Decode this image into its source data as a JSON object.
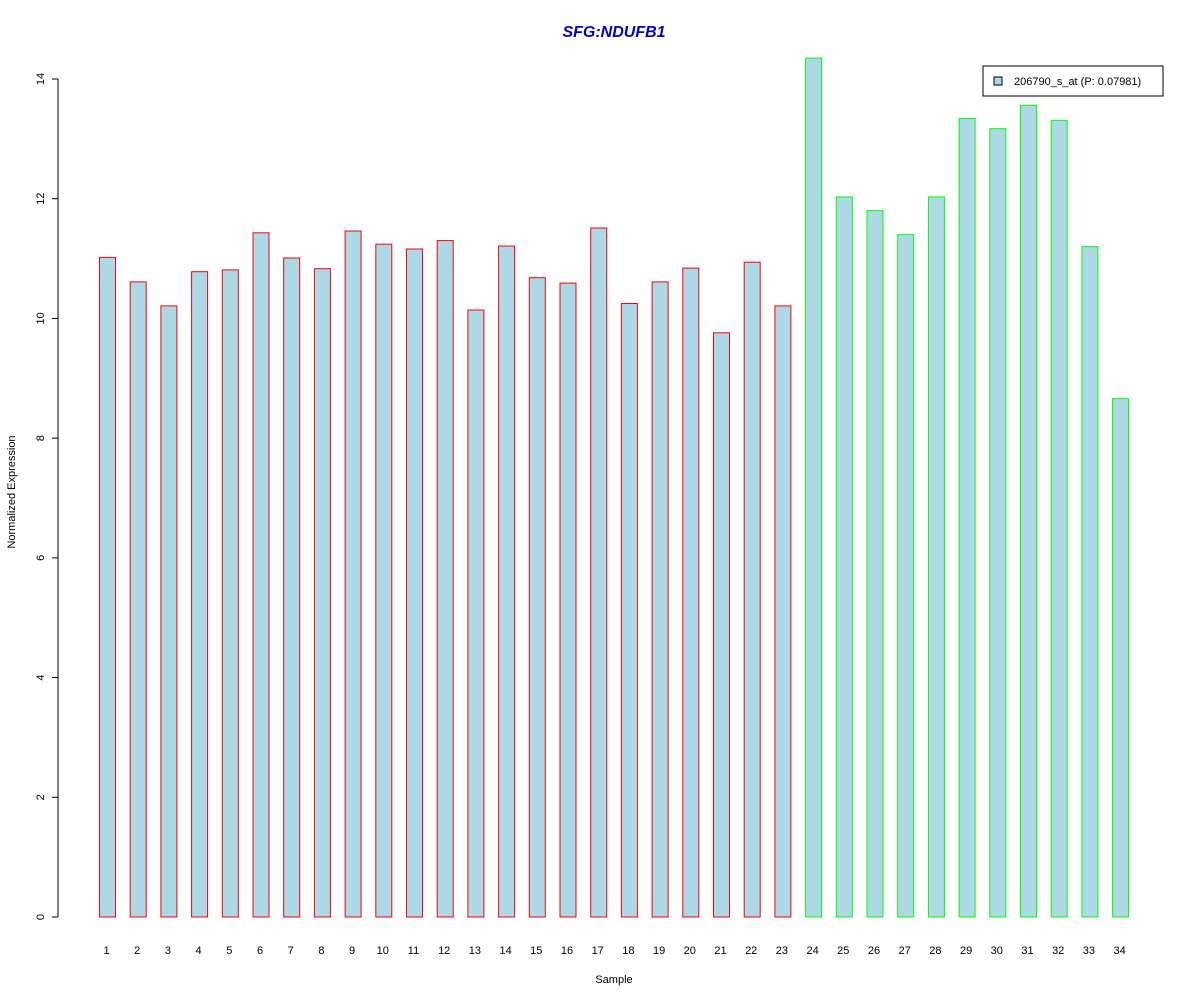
{
  "chart_data": {
    "type": "bar",
    "title": "SFG:NDUFB1",
    "xlabel": "Sample",
    "ylabel": "Normalized Expression",
    "ylim": [
      0,
      14
    ],
    "yticks": [
      "0",
      "2",
      "4",
      "6",
      "8",
      "10",
      "12",
      "14"
    ],
    "categories": [
      "1",
      "2",
      "3",
      "4",
      "5",
      "6",
      "7",
      "8",
      "9",
      "10",
      "11",
      "12",
      "13",
      "14",
      "15",
      "16",
      "17",
      "18",
      "19",
      "20",
      "21",
      "22",
      "23",
      "24",
      "25",
      "26",
      "27",
      "28",
      "29",
      "30",
      "31",
      "32",
      "33",
      "34"
    ],
    "series": [
      {
        "name": "206790_s_at (P: 0.07981)",
        "values": [
          11.02,
          10.61,
          10.21,
          10.78,
          10.81,
          11.43,
          11.01,
          10.83,
          11.46,
          11.24,
          11.16,
          11.3,
          10.14,
          11.21,
          10.68,
          10.59,
          11.51,
          10.25,
          10.61,
          10.84,
          9.76,
          10.94,
          10.21,
          14.35,
          12.03,
          11.8,
          11.4,
          12.03,
          13.34,
          13.17,
          13.56,
          13.31,
          11.2,
          8.66
        ]
      }
    ],
    "bar_fill": "#add8e6",
    "group_colors": [
      "#ff0000",
      "#00ff00"
    ],
    "groups": [
      0,
      0,
      0,
      0,
      0,
      0,
      0,
      0,
      0,
      0,
      0,
      0,
      0,
      0,
      0,
      0,
      0,
      0,
      0,
      0,
      0,
      0,
      0,
      1,
      1,
      1,
      1,
      1,
      1,
      1,
      1,
      1,
      1,
      1
    ],
    "title_color": "#0000cd",
    "legend_position": "top-right",
    "grid": false
  }
}
